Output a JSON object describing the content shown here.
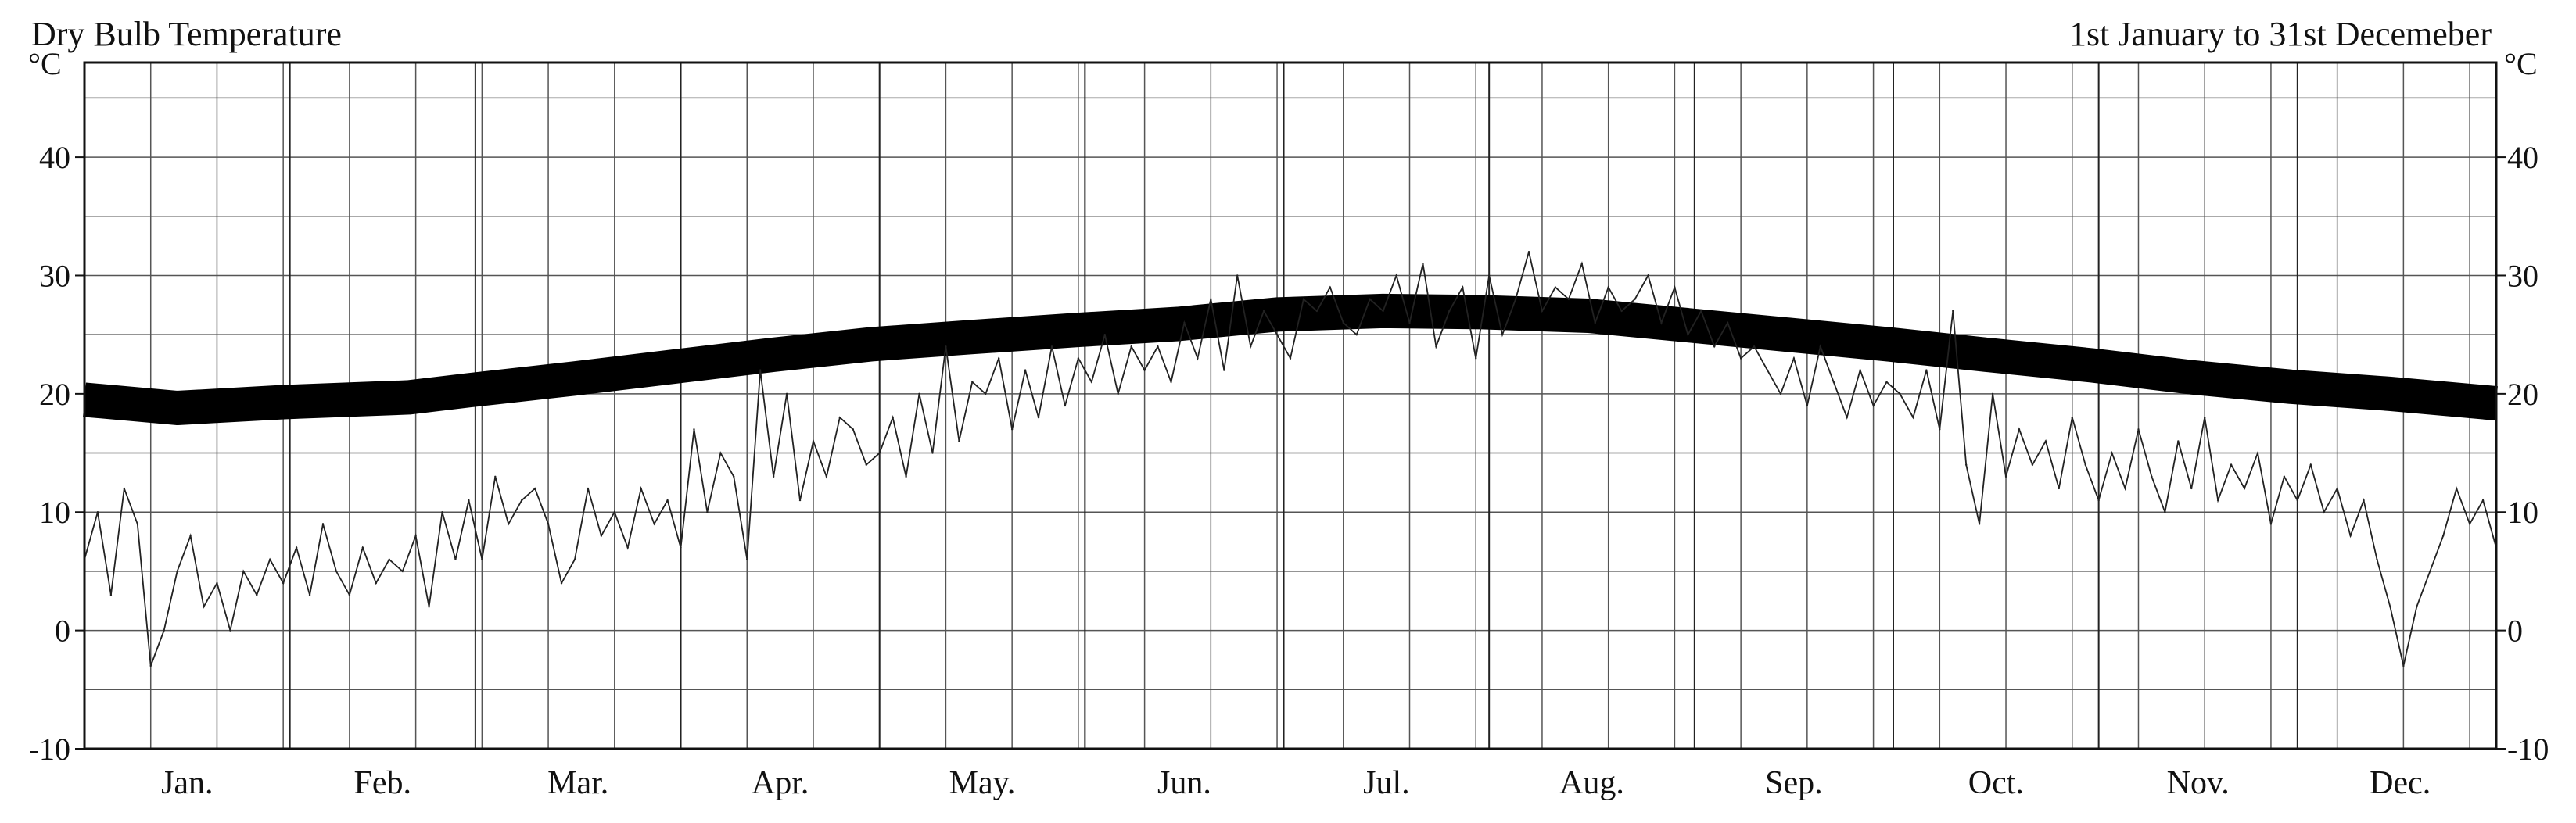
{
  "chart_data": {
    "type": "line",
    "title": "Dry Bulb Temperature",
    "subtitle": "1st January to 31st Decemeber",
    "ylabel_left": "°C",
    "ylabel_right": "°C",
    "ylim": [
      -10,
      48
    ],
    "yticks": [
      -10,
      0,
      10,
      20,
      30,
      40
    ],
    "grid": true,
    "months": [
      "Jan.",
      "Feb.",
      "Mar.",
      "Apr.",
      "May.",
      "Jun.",
      "Jul.",
      "Aug.",
      "Sep.",
      "Oct.",
      "Nov.",
      "Dec."
    ],
    "series": [
      {
        "style": "band",
        "x": [
          1,
          15,
          31,
          50,
          59,
          75,
          90,
          105,
          120,
          135,
          151,
          166,
          181,
          197,
          212,
          228,
          243,
          258,
          273,
          288,
          304,
          319,
          334,
          349,
          365
        ],
        "values": [
          19.5,
          18.8,
          19.3,
          19.7,
          20.3,
          21.3,
          22.3,
          23.3,
          24.2,
          24.8,
          25.4,
          25.9,
          26.7,
          27.0,
          26.9,
          26.6,
          25.8,
          25.0,
          24.2,
          23.3,
          22.4,
          21.4,
          20.6,
          20.0,
          19.2
        ]
      },
      {
        "style": "thin",
        "x": [
          1,
          3,
          5,
          7,
          9,
          11,
          13,
          15,
          17,
          19,
          21,
          23,
          25,
          27,
          29,
          31,
          33,
          35,
          37,
          39,
          41,
          43,
          45,
          47,
          49,
          51,
          53,
          55,
          57,
          59,
          61,
          63,
          65,
          67,
          69,
          71,
          73,
          75,
          77,
          79,
          81,
          83,
          85,
          87,
          89,
          91,
          93,
          95,
          97,
          99,
          101,
          103,
          105,
          107,
          109,
          111,
          113,
          115,
          117,
          119,
          121,
          123,
          125,
          127,
          129,
          131,
          133,
          135,
          137,
          139,
          141,
          143,
          145,
          147,
          149,
          151,
          153,
          155,
          157,
          159,
          161,
          163,
          165,
          167,
          169,
          171,
          173,
          175,
          177,
          179,
          181,
          183,
          185,
          187,
          189,
          191,
          193,
          195,
          197,
          199,
          201,
          203,
          205,
          207,
          209,
          211,
          213,
          215,
          217,
          219,
          221,
          223,
          225,
          227,
          229,
          231,
          233,
          235,
          237,
          239,
          241,
          243,
          245,
          247,
          249,
          251,
          253,
          255,
          257,
          259,
          261,
          263,
          265,
          267,
          269,
          271,
          273,
          275,
          277,
          279,
          281,
          283,
          285,
          287,
          289,
          291,
          293,
          295,
          297,
          299,
          301,
          303,
          305,
          307,
          309,
          311,
          313,
          315,
          317,
          319,
          321,
          323,
          325,
          327,
          329,
          331,
          333,
          335,
          337,
          339,
          341,
          343,
          345,
          347,
          349,
          351,
          353,
          355,
          357,
          359,
          361,
          363,
          365
        ],
        "values": [
          6,
          10,
          3,
          12,
          9,
          -3,
          0,
          5,
          8,
          2,
          4,
          0,
          5,
          3,
          6,
          4,
          7,
          3,
          9,
          5,
          3,
          7,
          4,
          6,
          5,
          8,
          2,
          10,
          6,
          11,
          6,
          13,
          9,
          11,
          12,
          9,
          4,
          6,
          12,
          8,
          10,
          7,
          12,
          9,
          11,
          7,
          17,
          10,
          15,
          13,
          6,
          22,
          13,
          20,
          11,
          16,
          13,
          18,
          17,
          14,
          15,
          18,
          13,
          20,
          15,
          24,
          16,
          21,
          20,
          23,
          17,
          22,
          18,
          24,
          19,
          23,
          21,
          25,
          20,
          24,
          22,
          24,
          21,
          26,
          23,
          28,
          22,
          30,
          24,
          27,
          25,
          23,
          28,
          27,
          29,
          26,
          25,
          28,
          27,
          30,
          26,
          31,
          24,
          27,
          29,
          23,
          30,
          25,
          28,
          32,
          27,
          29,
          28,
          31,
          26,
          29,
          27,
          28,
          30,
          26,
          29,
          25,
          27,
          24,
          26,
          23,
          24,
          22,
          20,
          23,
          19,
          24,
          21,
          18,
          22,
          19,
          21,
          20,
          18,
          22,
          17,
          27,
          14,
          9,
          20,
          13,
          17,
          14,
          16,
          12,
          18,
          14,
          11,
          15,
          12,
          17,
          13,
          10,
          16,
          12,
          18,
          11,
          14,
          12,
          15,
          9,
          13,
          11,
          14,
          10,
          12,
          8,
          11,
          6,
          2,
          -3,
          2,
          5,
          8,
          12,
          9,
          11,
          7
        ]
      }
    ]
  }
}
